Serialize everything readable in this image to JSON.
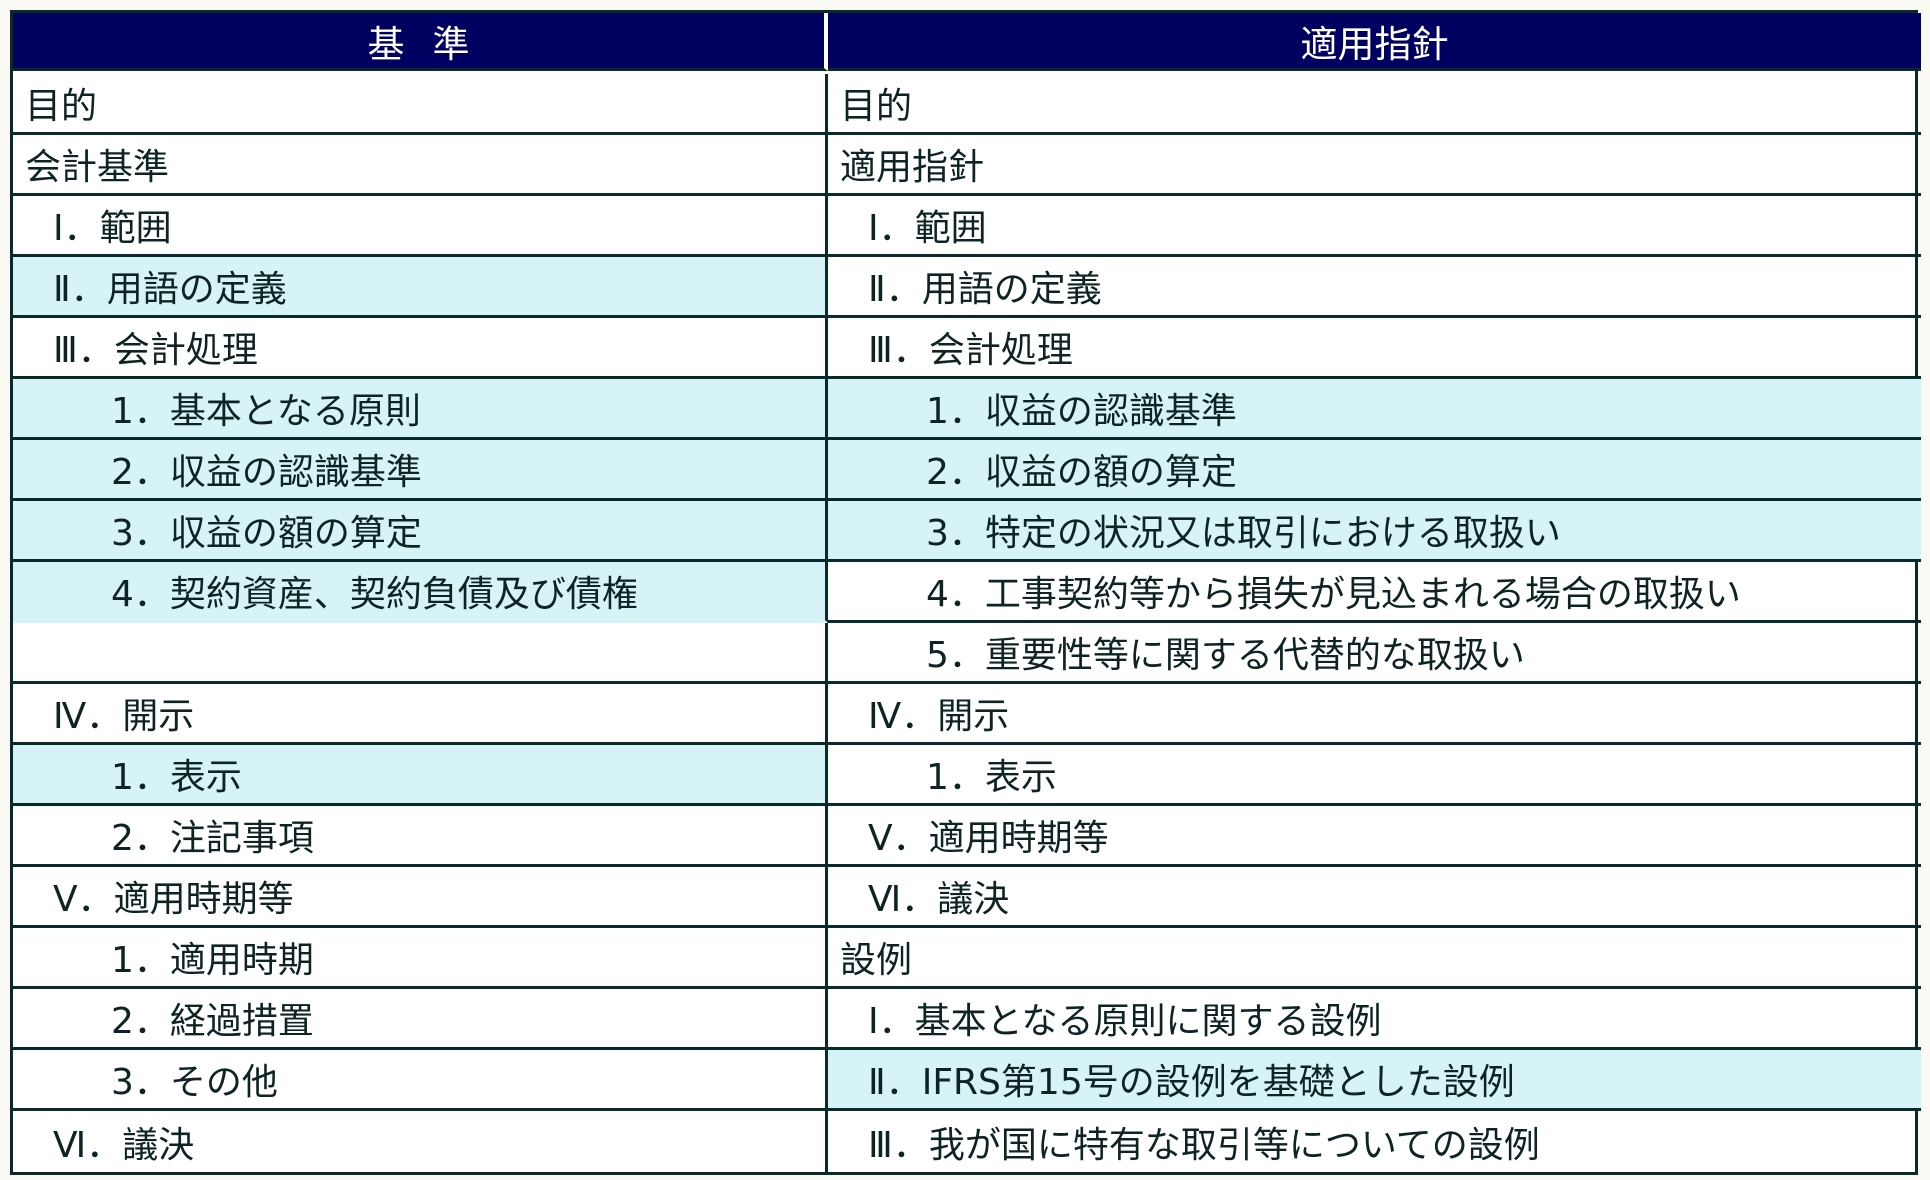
{
  "colors": {
    "header_bg": "#000060",
    "highlight": "#d6f3f8",
    "border": "#0a2a2a"
  },
  "header": {
    "left": "基準",
    "right": "適用指針"
  },
  "left_rows": [
    {
      "text": "目的",
      "level": 0,
      "highlight": false
    },
    {
      "text": "会計基準",
      "level": 0,
      "highlight": false
    },
    {
      "text": "Ⅰ．範囲",
      "level": 1,
      "highlight": false
    },
    {
      "text": "Ⅱ．用語の定義",
      "level": 1,
      "highlight": true
    },
    {
      "text": "Ⅲ．会計処理",
      "level": 1,
      "highlight": false
    },
    {
      "text": "1．基本となる原則",
      "level": 2,
      "highlight": true
    },
    {
      "text": "2．収益の認識基準",
      "level": 2,
      "highlight": true
    },
    {
      "text": "3．収益の額の算定",
      "level": 2,
      "highlight": true
    },
    {
      "text": "4．契約資産、契約負債及び債権",
      "level": 2,
      "highlight": true
    },
    {
      "text": "",
      "level": 2,
      "highlight": false
    },
    {
      "text": "Ⅳ．開示",
      "level": 1,
      "highlight": false
    },
    {
      "text": "1．表示",
      "level": 2,
      "highlight": true
    },
    {
      "text": "2．注記事項",
      "level": 2,
      "highlight": false
    },
    {
      "text": "Ⅴ．適用時期等",
      "level": 1,
      "highlight": false
    },
    {
      "text": "1．適用時期",
      "level": 2,
      "highlight": false
    },
    {
      "text": "2．経過措置",
      "level": 2,
      "highlight": false
    },
    {
      "text": "3．その他",
      "level": 2,
      "highlight": false
    },
    {
      "text": "Ⅵ．議決",
      "level": 1,
      "highlight": false
    }
  ],
  "right_rows": [
    {
      "text": "目的",
      "level": 0,
      "highlight": false
    },
    {
      "text": "適用指針",
      "level": 0,
      "highlight": false
    },
    {
      "text": "Ⅰ．範囲",
      "level": 1,
      "highlight": false
    },
    {
      "text": "Ⅱ．用語の定義",
      "level": 1,
      "highlight": false
    },
    {
      "text": "Ⅲ．会計処理",
      "level": 1,
      "highlight": false
    },
    {
      "text": "1．収益の認識基準",
      "level": 2,
      "highlight": true
    },
    {
      "text": "2．収益の額の算定",
      "level": 2,
      "highlight": true
    },
    {
      "text": "3．特定の状況又は取引における取扱い",
      "level": 2,
      "highlight": true
    },
    {
      "text": "4．工事契約等から損失が見込まれる場合の取扱い",
      "level": 2,
      "highlight": false
    },
    {
      "text": "5．重要性等に関する代替的な取扱い",
      "level": 2,
      "highlight": false
    },
    {
      "text": "Ⅳ．開示",
      "level": 1,
      "highlight": false
    },
    {
      "text": "1．表示",
      "level": 2,
      "highlight": false
    },
    {
      "text": "Ⅴ．適用時期等",
      "level": 1,
      "highlight": false
    },
    {
      "text": "Ⅵ．議決",
      "level": 1,
      "highlight": false
    },
    {
      "text": "設例",
      "level": 0,
      "highlight": false
    },
    {
      "text": "Ⅰ．基本となる原則に関する設例",
      "level": 1,
      "highlight": false
    },
    {
      "text": "Ⅱ．IFRS第15号の設例を基礎とした設例",
      "level": 1,
      "highlight": true
    },
    {
      "text": "Ⅲ．我が国に特有な取引等についての設例",
      "level": 1,
      "highlight": false
    }
  ]
}
